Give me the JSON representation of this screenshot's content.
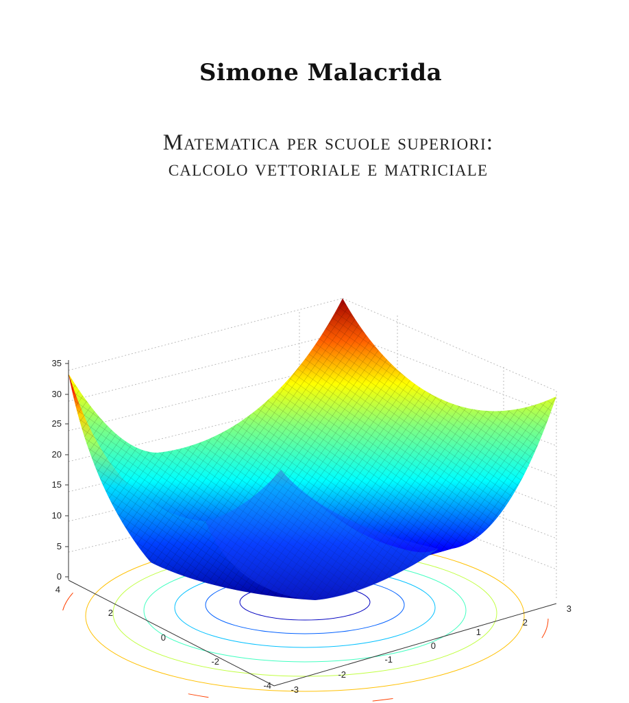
{
  "cover": {
    "author": "Simone Malacrida",
    "title_line1": "Matematica per scuole superiori:",
    "title_line2": "calcolo vettoriale e matriciale"
  },
  "plot": {
    "z_tick_labels": [
      "0",
      "5",
      "10",
      "15",
      "20",
      "25",
      "30",
      "35"
    ],
    "left_axis_tick_labels": [
      "4",
      "2",
      "0",
      "-2",
      "-4"
    ],
    "right_axis_tick_labels": [
      "-3",
      "-2",
      "-1",
      "0",
      "1",
      "2",
      "3"
    ],
    "colors": {
      "low": "#00008f",
      "mid": "#00ffff",
      "high": "#ff0000",
      "peak": "#800000"
    },
    "surface_icon": "paraboloid-surface"
  }
}
